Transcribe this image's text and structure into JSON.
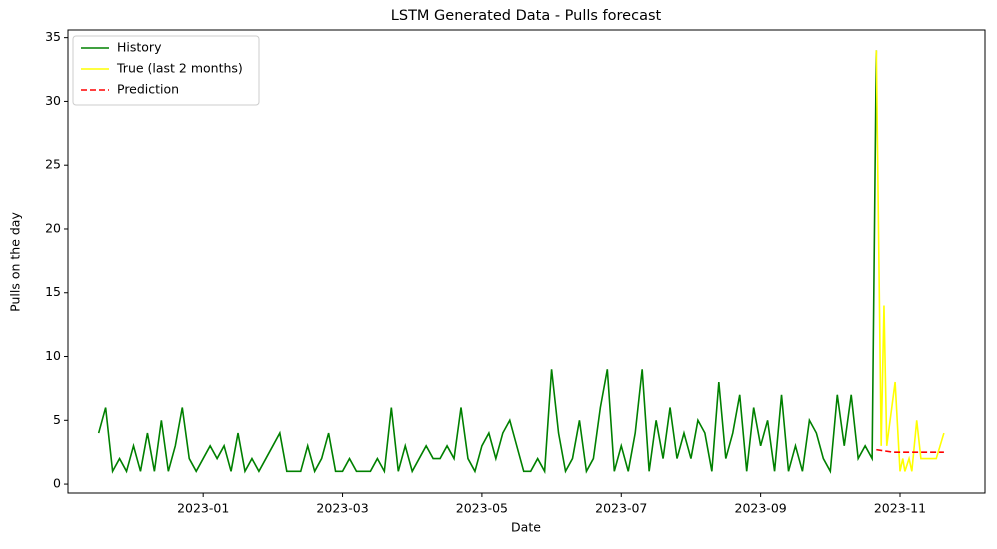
{
  "chart_data": {
    "type": "line",
    "title": "LSTM Generated Data - Pulls forecast",
    "x_label": "Date",
    "y_label": "Pulls on the day",
    "xlim": [
      -0.94,
      12.22
    ],
    "xticks": [
      {
        "value": 1,
        "label": "2023-01"
      },
      {
        "value": 3,
        "label": "2023-03"
      },
      {
        "value": 5,
        "label": "2023-05"
      },
      {
        "value": 7,
        "label": "2023-07"
      },
      {
        "value": 9,
        "label": "2023-09"
      },
      {
        "value": 11,
        "label": "2023-11"
      }
    ],
    "ylim": [
      -0.7,
      35.6
    ],
    "yticks": [
      0,
      5,
      10,
      15,
      20,
      25,
      30,
      35
    ],
    "legend": "upper left",
    "series": [
      {
        "name": "History",
        "color": "#008000",
        "dash": false,
        "x": [
          -0.5,
          -0.4,
          -0.3,
          -0.2,
          -0.1,
          0,
          0.1,
          0.2,
          0.3,
          0.4,
          0.5,
          0.6,
          0.7,
          0.8,
          0.9,
          1,
          1.1,
          1.2,
          1.3,
          1.4,
          1.5,
          1.6,
          1.7,
          1.8,
          1.9,
          2,
          2.1,
          2.2,
          2.3,
          2.4,
          2.5,
          2.6,
          2.7,
          2.8,
          2.9,
          3,
          3.1,
          3.2,
          3.3,
          3.4,
          3.5,
          3.6,
          3.7,
          3.8,
          3.9,
          4,
          4.1,
          4.2,
          4.3,
          4.4,
          4.5,
          4.6,
          4.7,
          4.8,
          4.9,
          5,
          5.1,
          5.2,
          5.3,
          5.4,
          5.5,
          5.6,
          5.7,
          5.8,
          5.9,
          6,
          6.1,
          6.2,
          6.3,
          6.4,
          6.5,
          6.6,
          6.7,
          6.8,
          6.9,
          7,
          7.1,
          7.2,
          7.3,
          7.4,
          7.5,
          7.6,
          7.7,
          7.8,
          7.9,
          8,
          8.1,
          8.2,
          8.3,
          8.4,
          8.5,
          8.6,
          8.7,
          8.8,
          8.9,
          9,
          9.1,
          9.2,
          9.3,
          9.4,
          9.5,
          9.6,
          9.7,
          9.8,
          9.9,
          10,
          10.1,
          10.2,
          10.3,
          10.4,
          10.5,
          10.6,
          10.66
        ],
        "values": [
          4,
          6,
          1,
          2,
          1,
          3,
          1,
          4,
          1,
          5,
          1,
          3,
          6,
          2,
          1,
          2,
          3,
          2,
          3,
          1,
          4,
          1,
          2,
          1,
          2,
          3,
          4,
          1,
          1,
          1,
          3,
          1,
          2,
          4,
          1,
          1,
          2,
          1,
          1,
          1,
          2,
          1,
          6,
          1,
          3,
          1,
          2,
          3,
          2,
          2,
          3,
          2,
          6,
          2,
          1,
          3,
          4,
          2,
          4,
          5,
          3,
          1,
          1,
          2,
          1,
          9,
          4,
          1,
          2,
          5,
          1,
          2,
          6,
          9,
          1,
          3,
          1,
          4,
          9,
          1,
          5,
          2,
          6,
          2,
          4,
          2,
          5,
          4,
          1,
          8,
          2,
          4,
          7,
          1,
          6,
          3,
          5,
          1,
          7,
          1,
          3,
          1,
          5,
          4,
          2,
          1,
          7,
          3,
          7,
          2,
          3,
          2,
          34
        ]
      },
      {
        "name": "True (last 2 months)",
        "color": "#ffff00",
        "dash": false,
        "x": [
          10.66,
          10.73,
          10.77,
          10.81,
          10.93,
          11.0,
          11.04,
          11.07,
          11.13,
          11.17,
          11.24,
          11.3,
          11.52,
          11.63
        ],
        "values": [
          34,
          3,
          14,
          3,
          8,
          1,
          2,
          1,
          2,
          1,
          5,
          2,
          2,
          4
        ]
      },
      {
        "name": "Prediction",
        "color": "#ff0000",
        "dash": true,
        "x": [
          10.66,
          10.9,
          11.15,
          11.4,
          11.63
        ],
        "values": [
          2.7,
          2.5,
          2.5,
          2.5,
          2.5
        ]
      }
    ]
  }
}
